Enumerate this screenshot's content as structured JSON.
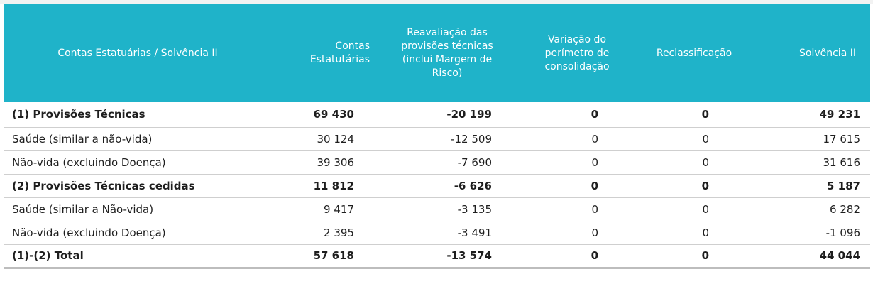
{
  "table": {
    "headers": [
      "Contas Estatuárias / Solvência II",
      "Contas\nEstatutárias",
      "Reavaliação das\nprovisões técnicas\n(inclui Margem de\nRisco)",
      "Variação do\nperímetro de\nconsolidação",
      "Reclassificação",
      "Solvência II"
    ],
    "rows": [
      {
        "label": "(1) Provisões Técnicas",
        "values": [
          "69 430",
          "-20 199",
          "0",
          "0",
          "49 231"
        ],
        "bold": true
      },
      {
        "label": "Saúde (similar a não-vida)",
        "values": [
          "30 124",
          "-12 509",
          "0",
          "0",
          "17 615"
        ],
        "bold": false
      },
      {
        "label": "Não-vida (excluindo Doença)",
        "values": [
          "39 306",
          "-7 690",
          "0",
          "0",
          "31 616"
        ],
        "bold": false
      },
      {
        "label": "(2) Provisões Técnicas cedidas",
        "values": [
          "11 812",
          "-6 626",
          "0",
          "0",
          "5 187"
        ],
        "bold": true
      },
      {
        "label": "Saúde (similar a Não-vida)",
        "values": [
          "9 417",
          "-3 135",
          "0",
          "0",
          "6 282"
        ],
        "bold": false
      },
      {
        "label": "Não-vida (excluindo Doença)",
        "values": [
          "2 395",
          "-3 491",
          "0",
          "0",
          "-1 096"
        ],
        "bold": false
      },
      {
        "label": "(1)-(2) Total",
        "values": [
          "57 618",
          "-13 574",
          "0",
          "0",
          "44 044"
        ],
        "bold": true
      }
    ]
  },
  "colors": {
    "header_background": "#1fb3c9",
    "header_text": "#ffffff",
    "row_divider": "#cfcfcf"
  }
}
